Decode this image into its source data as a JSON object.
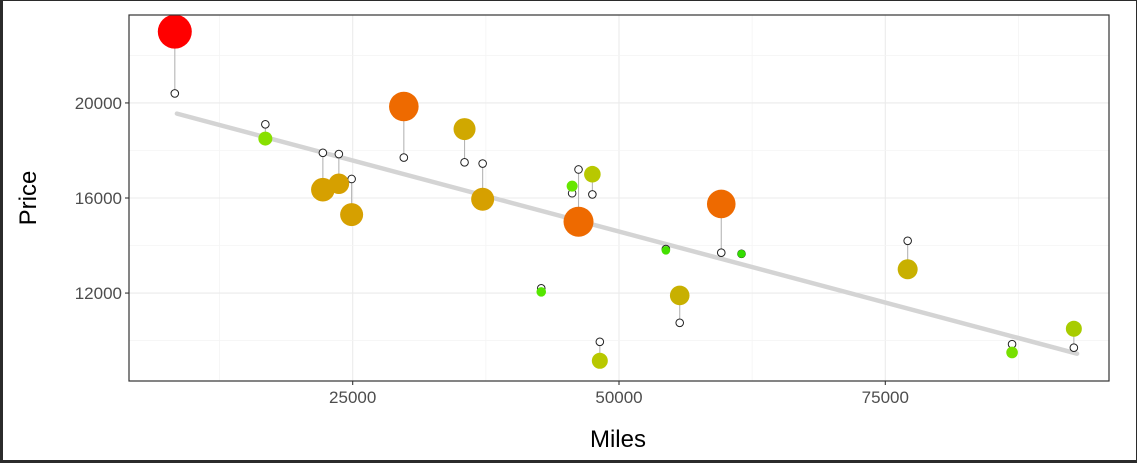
{
  "chart_data": {
    "type": "scatter",
    "xlabel": "Miles",
    "ylabel": "Price",
    "xlim": [
      4000,
      96000
    ],
    "ylim": [
      8300,
      23700
    ],
    "x_ticks": [
      25000,
      50000,
      75000
    ],
    "y_ticks": [
      12000,
      16000,
      20000
    ],
    "x_tick_labels": [
      "25000",
      "50000",
      "75000"
    ],
    "y_tick_labels": [
      "12000",
      "16000",
      "20000"
    ],
    "trend_line": {
      "x": [
        8500,
        93000
      ],
      "y": [
        19550,
        9450
      ]
    },
    "points": [
      {
        "miles": 8300,
        "price": 23000,
        "predicted": 20400,
        "color": "#ff0000"
      },
      {
        "miles": 16800,
        "price": 18500,
        "predicted": 19100,
        "color": "#88e000"
      },
      {
        "miles": 22200,
        "price": 16350,
        "predicted": 17900,
        "color": "#d6a000"
      },
      {
        "miles": 23700,
        "price": 16600,
        "predicted": 17850,
        "color": "#d6a000"
      },
      {
        "miles": 24900,
        "price": 15300,
        "predicted": 16800,
        "color": "#d6a000"
      },
      {
        "miles": 29800,
        "price": 19850,
        "predicted": 17700,
        "color": "#ee6a00"
      },
      {
        "miles": 35500,
        "price": 18900,
        "predicted": 17500,
        "color": "#d0a800"
      },
      {
        "miles": 37200,
        "price": 15950,
        "predicted": 17450,
        "color": "#d6a000"
      },
      {
        "miles": 42700,
        "price": 12050,
        "predicted": 12200,
        "color": "#55e600"
      },
      {
        "miles": 45600,
        "price": 16500,
        "predicted": 16200,
        "color": "#66e600"
      },
      {
        "miles": 46200,
        "price": 15000,
        "predicted": 17200,
        "color": "#ee6a00"
      },
      {
        "miles": 47500,
        "price": 17000,
        "predicted": 16150,
        "color": "#b8c800"
      },
      {
        "miles": 48200,
        "price": 9150,
        "predicted": 9950,
        "color": "#b8c800"
      },
      {
        "miles": 54400,
        "price": 13800,
        "predicted": 13850,
        "color": "#44e000"
      },
      {
        "miles": 55700,
        "price": 11900,
        "predicted": 10750,
        "color": "#c8b000"
      },
      {
        "miles": 59600,
        "price": 15750,
        "predicted": 13700,
        "color": "#ee6a00"
      },
      {
        "miles": 61500,
        "price": 13650,
        "predicted": 13650,
        "color": "#33dd00"
      },
      {
        "miles": 77100,
        "price": 13000,
        "predicted": 14200,
        "color": "#c8b000"
      },
      {
        "miles": 86900,
        "price": 9500,
        "predicted": 9850,
        "color": "#77e000"
      },
      {
        "miles": 92700,
        "price": 10500,
        "predicted": 9700,
        "color": "#a8cc00"
      }
    ]
  }
}
